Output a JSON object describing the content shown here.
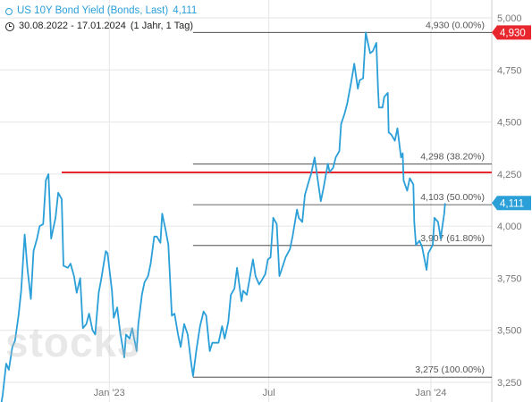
{
  "header": {
    "instrument_label": "US 10Y Bond Yield (Bonds, Last)",
    "last_value": "4,111",
    "date_range": "30.08.2022 - 17.01.2024",
    "period": "(1 Jahr, 1 Tag)"
  },
  "watermark": "stock3",
  "colors": {
    "series": "#2a9fd8",
    "resistance": "#e8262d",
    "fib": "#333333",
    "grid": "#e6e6e6",
    "high_badge": "#e8262d",
    "last_badge": "#2a9fd8"
  },
  "chart_data": {
    "type": "line",
    "title": "US 10Y Bond Yield (Bonds, Last)",
    "ylim": [
      3.25,
      5.0
    ],
    "y_ticks": [
      5.0,
      4.75,
      4.5,
      4.25,
      4.0,
      3.75,
      3.5,
      3.25
    ],
    "y_tick_labels": [
      "5,000",
      "4,750",
      "4,500",
      "4,250",
      "4,000",
      "3,750",
      "3,500",
      "3,250"
    ],
    "x_ticks": [
      {
        "label": "Jan '23",
        "date": "2023-01-01"
      },
      {
        "label": "Jul",
        "date": "2023-07-01"
      },
      {
        "label": "Jan '24",
        "date": "2024-01-01"
      }
    ],
    "x_range": [
      "2022-08-30",
      "2024-03-10"
    ],
    "series": [
      {
        "values": [
          [
            "2022-08-30",
            3.11
          ],
          [
            "2022-09-02",
            3.19
          ],
          [
            "2022-09-06",
            3.34
          ],
          [
            "2022-09-09",
            3.31
          ],
          [
            "2022-09-13",
            3.42
          ],
          [
            "2022-09-16",
            3.45
          ],
          [
            "2022-09-20",
            3.57
          ],
          [
            "2022-09-23",
            3.69
          ],
          [
            "2022-09-27",
            3.96
          ],
          [
            "2022-09-30",
            3.8
          ],
          [
            "2022-10-04",
            3.65
          ],
          [
            "2022-10-07",
            3.88
          ],
          [
            "2022-10-11",
            3.94
          ],
          [
            "2022-10-14",
            4.0
          ],
          [
            "2022-10-18",
            4.01
          ],
          [
            "2022-10-21",
            4.22
          ],
          [
            "2022-10-24",
            4.25
          ],
          [
            "2022-10-27",
            3.94
          ],
          [
            "2022-11-01",
            4.04
          ],
          [
            "2022-11-04",
            4.16
          ],
          [
            "2022-11-08",
            4.13
          ],
          [
            "2022-11-10",
            3.81
          ],
          [
            "2022-11-15",
            3.8
          ],
          [
            "2022-11-18",
            3.82
          ],
          [
            "2022-11-22",
            3.76
          ],
          [
            "2022-11-25",
            3.68
          ],
          [
            "2022-11-29",
            3.75
          ],
          [
            "2022-12-02",
            3.51
          ],
          [
            "2022-12-06",
            3.53
          ],
          [
            "2022-12-09",
            3.58
          ],
          [
            "2022-12-13",
            3.5
          ],
          [
            "2022-12-16",
            3.48
          ],
          [
            "2022-12-20",
            3.68
          ],
          [
            "2022-12-23",
            3.75
          ],
          [
            "2022-12-28",
            3.88
          ],
          [
            "2022-12-30",
            3.87
          ],
          [
            "2023-01-04",
            3.69
          ],
          [
            "2023-01-06",
            3.56
          ],
          [
            "2023-01-10",
            3.61
          ],
          [
            "2023-01-13",
            3.5
          ],
          [
            "2023-01-18",
            3.37
          ],
          [
            "2023-01-20",
            3.48
          ],
          [
            "2023-01-24",
            3.46
          ],
          [
            "2023-01-27",
            3.51
          ],
          [
            "2023-02-01",
            3.4
          ],
          [
            "2023-02-03",
            3.53
          ],
          [
            "2023-02-07",
            3.67
          ],
          [
            "2023-02-10",
            3.73
          ],
          [
            "2023-02-14",
            3.76
          ],
          [
            "2023-02-17",
            3.82
          ],
          [
            "2023-02-21",
            3.95
          ],
          [
            "2023-02-24",
            3.95
          ],
          [
            "2023-02-28",
            3.92
          ],
          [
            "2023-03-02",
            4.06
          ],
          [
            "2023-03-06",
            3.98
          ],
          [
            "2023-03-09",
            3.91
          ],
          [
            "2023-03-13",
            3.57
          ],
          [
            "2023-03-16",
            3.58
          ],
          [
            "2023-03-20",
            3.48
          ],
          [
            "2023-03-23",
            3.42
          ],
          [
            "2023-03-27",
            3.53
          ],
          [
            "2023-03-31",
            3.48
          ],
          [
            "2023-04-04",
            3.34
          ],
          [
            "2023-04-06",
            3.28
          ],
          [
            "2023-04-10",
            3.41
          ],
          [
            "2023-04-14",
            3.52
          ],
          [
            "2023-04-18",
            3.59
          ],
          [
            "2023-04-21",
            3.57
          ],
          [
            "2023-04-25",
            3.4
          ],
          [
            "2023-04-28",
            3.44
          ],
          [
            "2023-05-02",
            3.44
          ],
          [
            "2023-05-05",
            3.44
          ],
          [
            "2023-05-09",
            3.52
          ],
          [
            "2023-05-12",
            3.46
          ],
          [
            "2023-05-16",
            3.54
          ],
          [
            "2023-05-19",
            3.67
          ],
          [
            "2023-05-23",
            3.7
          ],
          [
            "2023-05-26",
            3.8
          ],
          [
            "2023-05-31",
            3.64
          ],
          [
            "2023-06-02",
            3.69
          ],
          [
            "2023-06-06",
            3.67
          ],
          [
            "2023-06-09",
            3.74
          ],
          [
            "2023-06-13",
            3.84
          ],
          [
            "2023-06-16",
            3.76
          ],
          [
            "2023-06-20",
            3.72
          ],
          [
            "2023-06-23",
            3.74
          ],
          [
            "2023-06-27",
            3.77
          ],
          [
            "2023-06-30",
            3.84
          ],
          [
            "2023-07-03",
            3.85
          ],
          [
            "2023-07-06",
            4.04
          ],
          [
            "2023-07-10",
            4.01
          ],
          [
            "2023-07-13",
            3.76
          ],
          [
            "2023-07-17",
            3.81
          ],
          [
            "2023-07-20",
            3.85
          ],
          [
            "2023-07-25",
            3.89
          ],
          [
            "2023-07-28",
            3.95
          ],
          [
            "2023-08-02",
            4.08
          ],
          [
            "2023-08-04",
            4.04
          ],
          [
            "2023-08-08",
            4.02
          ],
          [
            "2023-08-11",
            4.15
          ],
          [
            "2023-08-15",
            4.21
          ],
          [
            "2023-08-18",
            4.25
          ],
          [
            "2023-08-22",
            4.33
          ],
          [
            "2023-08-25",
            4.24
          ],
          [
            "2023-08-29",
            4.12
          ],
          [
            "2023-09-01",
            4.18
          ],
          [
            "2023-09-06",
            4.3
          ],
          [
            "2023-09-08",
            4.26
          ],
          [
            "2023-09-12",
            4.28
          ],
          [
            "2023-09-15",
            4.33
          ],
          [
            "2023-09-19",
            4.36
          ],
          [
            "2023-09-21",
            4.49
          ],
          [
            "2023-09-25",
            4.54
          ],
          [
            "2023-09-28",
            4.59
          ],
          [
            "2023-10-02",
            4.68
          ],
          [
            "2023-10-04",
            4.73
          ],
          [
            "2023-10-06",
            4.78
          ],
          [
            "2023-10-10",
            4.66
          ],
          [
            "2023-10-12",
            4.7
          ],
          [
            "2023-10-16",
            4.71
          ],
          [
            "2023-10-19",
            4.93
          ],
          [
            "2023-10-20",
            4.91
          ],
          [
            "2023-10-24",
            4.83
          ],
          [
            "2023-10-27",
            4.84
          ],
          [
            "2023-10-31",
            4.88
          ],
          [
            "2023-11-02",
            4.66
          ],
          [
            "2023-11-03",
            4.57
          ],
          [
            "2023-11-07",
            4.57
          ],
          [
            "2023-11-09",
            4.62
          ],
          [
            "2023-11-13",
            4.64
          ],
          [
            "2023-11-14",
            4.45
          ],
          [
            "2023-11-17",
            4.44
          ],
          [
            "2023-11-21",
            4.41
          ],
          [
            "2023-11-24",
            4.47
          ],
          [
            "2023-11-28",
            4.33
          ],
          [
            "2023-11-30",
            4.35
          ],
          [
            "2023-12-01",
            4.22
          ],
          [
            "2023-12-05",
            4.17
          ],
          [
            "2023-12-08",
            4.23
          ],
          [
            "2023-12-12",
            4.2
          ],
          [
            "2023-12-13",
            4.02
          ],
          [
            "2023-12-15",
            3.91
          ],
          [
            "2023-12-19",
            3.93
          ],
          [
            "2023-12-22",
            3.9
          ],
          [
            "2023-12-27",
            3.79
          ],
          [
            "2023-12-29",
            3.87
          ],
          [
            "2024-01-03",
            3.91
          ],
          [
            "2024-01-05",
            4.04
          ],
          [
            "2024-01-09",
            4.02
          ],
          [
            "2024-01-11",
            3.97
          ],
          [
            "2024-01-12",
            3.94
          ],
          [
            "2024-01-16",
            4.06
          ],
          [
            "2024-01-17",
            4.11
          ]
        ]
      }
    ],
    "resistance_line": {
      "value": 4.258
    },
    "fibonacci_levels": [
      {
        "value": 4.93,
        "label": "4,930 (0.00%)"
      },
      {
        "value": 4.298,
        "label": "4,298 (38.20%)"
      },
      {
        "value": 4.103,
        "label": "4,103 (50.00%)"
      },
      {
        "value": 3.907,
        "label": "3,907 (61.80%)"
      },
      {
        "value": 3.275,
        "label": "3,275 (100.00%)"
      }
    ],
    "fib_start_date": "2023-04-06",
    "price_badges": [
      {
        "value": 4.93,
        "label": "4,930",
        "kind": "high"
      },
      {
        "value": 4.111,
        "label": "4,111",
        "kind": "last"
      }
    ],
    "grid": true
  }
}
